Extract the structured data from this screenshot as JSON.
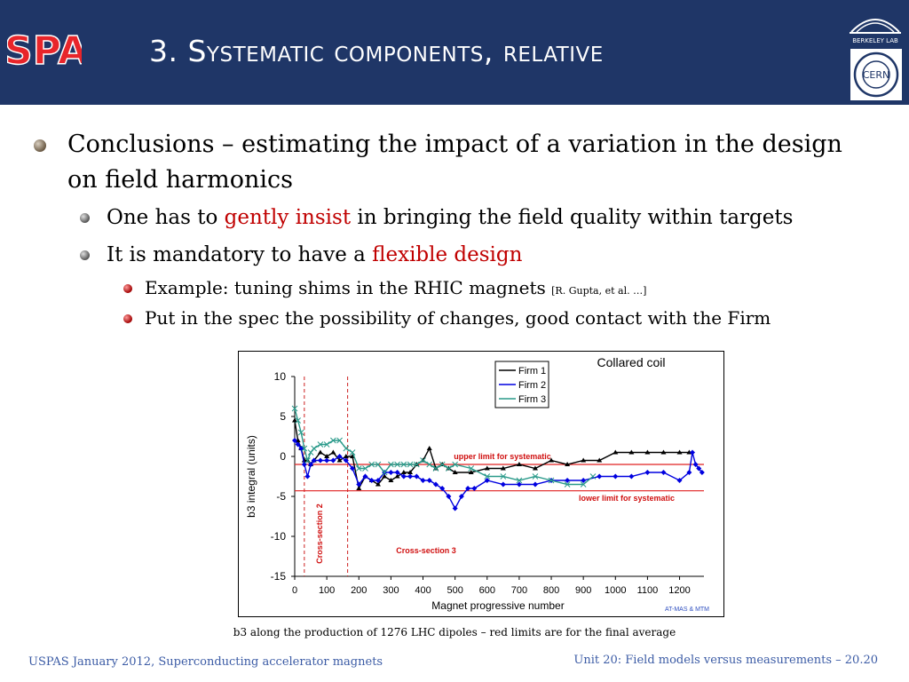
{
  "header": {
    "title": "3. Systematic components, relative",
    "logo_left": "USPAS",
    "logo_right_top": "BERKELEY LAB",
    "logo_right_bottom": "CERN"
  },
  "bullets": {
    "l1": "Conclusions – estimating the impact of a variation in the design on field harmonics",
    "l2a_pre": "One has to ",
    "l2a_red": "gently insist",
    "l2a_post": " in bringing the field quality within targets",
    "l2b_pre": "It is mandatory to have a ",
    "l2b_red": "flexible design",
    "l3a_text": "Example: tuning shims in the RHIC magnets ",
    "l3a_cite": "[R. Gupta, et al. …]",
    "l3b": "Put in the spec the possibility of changes, good contact with the Firm"
  },
  "caption": "b3 along the production of 1276 LHC dipoles – red limits are for the final average",
  "footer": {
    "left": "USPAS January 2012,  Superconducting accelerator magnets",
    "right": "Unit 20: Field models versus measurements – 20.20"
  },
  "colors": {
    "header_bg": "#1f3667",
    "firm1": "#000000",
    "firm2": "#0000e0",
    "firm3": "#2a9a8a",
    "limit": "#e02020",
    "footer_text": "#3b5ba5"
  },
  "chart_data": {
    "type": "line",
    "title": "Collared coil",
    "xlabel": "Magnet progressive number",
    "ylabel": "b3 integral (units)",
    "xlim": [
      0,
      1276
    ],
    "ylim": [
      -15,
      10
    ],
    "x_ticks": [
      0,
      100,
      200,
      300,
      400,
      500,
      600,
      700,
      800,
      900,
      1000,
      1100,
      1200
    ],
    "y_ticks": [
      10,
      5,
      0,
      -5,
      -10,
      -15
    ],
    "legend_position": "top-center",
    "grid": false,
    "series": [
      {
        "name": "Firm 1",
        "marker": "triangle",
        "x": [
          0,
          10,
          20,
          30,
          40,
          50,
          60,
          80,
          100,
          120,
          140,
          160,
          180,
          200,
          220,
          240,
          260,
          280,
          300,
          320,
          340,
          360,
          380,
          400,
          420,
          440,
          460,
          480,
          500,
          550,
          600,
          650,
          700,
          750,
          800,
          850,
          900,
          950,
          1000,
          1050,
          1100,
          1150,
          1200,
          1230
        ],
        "values": [
          4.5,
          2.0,
          1.0,
          -0.5,
          -0.5,
          -1.0,
          -0.5,
          0.5,
          0.0,
          0.5,
          -0.5,
          0.0,
          0.0,
          -4.0,
          -2.5,
          -3.0,
          -3.5,
          -2.5,
          -3.0,
          -2.5,
          -2.0,
          -2.0,
          -1.0,
          -0.5,
          1.0,
          -1.5,
          -1.0,
          -1.5,
          -2.0,
          -2.0,
          -1.5,
          -1.5,
          -1.0,
          -1.5,
          -0.5,
          -1.0,
          -0.5,
          -0.5,
          0.5,
          0.5,
          0.5,
          0.5,
          0.5,
          0.5
        ]
      },
      {
        "name": "Firm 2",
        "marker": "diamond",
        "x": [
          0,
          10,
          20,
          30,
          40,
          50,
          60,
          80,
          100,
          120,
          140,
          160,
          180,
          200,
          220,
          240,
          260,
          280,
          300,
          320,
          340,
          360,
          380,
          400,
          420,
          440,
          460,
          480,
          500,
          520,
          540,
          560,
          600,
          650,
          700,
          750,
          800,
          850,
          900,
          950,
          1000,
          1050,
          1100,
          1150,
          1200,
          1230,
          1240,
          1250,
          1260,
          1270
        ],
        "values": [
          2.0,
          1.5,
          1.0,
          -1.0,
          -2.5,
          -1.0,
          -0.5,
          -0.5,
          -0.5,
          -0.5,
          0.0,
          -0.5,
          -1.5,
          -3.5,
          -2.5,
          -3.0,
          -3.0,
          -2.0,
          -2.0,
          -2.0,
          -2.5,
          -2.5,
          -2.5,
          -3.0,
          -3.0,
          -3.5,
          -4.0,
          -5.0,
          -6.5,
          -5.0,
          -4.0,
          -4.0,
          -3.0,
          -3.5,
          -3.5,
          -3.5,
          -3.0,
          -3.0,
          -3.0,
          -2.5,
          -2.5,
          -2.5,
          -2.0,
          -2.0,
          -3.0,
          -2.0,
          0.5,
          -1.0,
          -1.5,
          -2.0
        ]
      },
      {
        "name": "Firm 3",
        "marker": "star",
        "x": [
          0,
          10,
          20,
          30,
          40,
          50,
          60,
          80,
          100,
          120,
          140,
          160,
          180,
          200,
          220,
          240,
          260,
          280,
          300,
          320,
          340,
          360,
          380,
          400,
          420,
          440,
          460,
          480,
          500,
          550,
          600,
          650,
          700,
          750,
          800,
          850,
          900,
          930
        ],
        "values": [
          6.0,
          4.5,
          3.0,
          1.0,
          -0.5,
          0.5,
          1.0,
          1.5,
          1.5,
          2.0,
          2.0,
          1.0,
          0.5,
          -1.5,
          -1.5,
          -1.0,
          -1.0,
          -2.0,
          -1.0,
          -1.0,
          -1.0,
          -1.0,
          -1.0,
          -0.5,
          -1.0,
          -1.5,
          -1.0,
          -1.5,
          -1.0,
          -1.5,
          -2.5,
          -2.5,
          -3.0,
          -2.5,
          -3.0,
          -3.5,
          -3.5,
          -2.5
        ]
      }
    ],
    "limits": [
      {
        "label": "upper limit for systematic",
        "y": -1.0
      },
      {
        "label": "lower limit for systematic",
        "y": -4.3
      }
    ],
    "markers": [
      {
        "label": "Cross-section 2",
        "x": 30
      },
      {
        "label": "Cross-section 3",
        "x": 165
      }
    ],
    "credit": "AT-MAS & MTM"
  }
}
